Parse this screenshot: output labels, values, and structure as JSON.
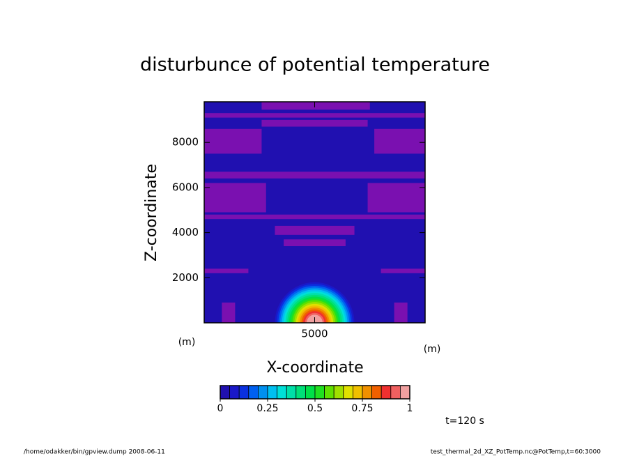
{
  "chart_data": {
    "type": "contour",
    "title": "disturbunce of potential temperature",
    "x_label": "X-coordinate",
    "y_label": "Z-coordinate",
    "x_unit": "(m)",
    "y_unit": "(m)",
    "xlim": [
      0,
      10000
    ],
    "ylim": [
      0,
      9800
    ],
    "xticks": [
      5000
    ],
    "yticks": [
      2000,
      4000,
      6000,
      8000
    ],
    "levels": [
      0,
      0.05,
      0.1,
      0.15,
      0.2,
      0.25,
      0.3,
      0.35,
      0.4,
      0.45,
      0.5,
      0.55,
      0.6,
      0.65,
      0.7,
      0.75,
      0.8,
      0.85,
      0.9,
      0.95,
      1
    ],
    "colors": [
      "#2010b0",
      "#1a18c8",
      "#0a30e0",
      "#0060f0",
      "#0090f0",
      "#00c0f0",
      "#00e0d8",
      "#00e0a8",
      "#00e078",
      "#00e048",
      "#20e020",
      "#60e000",
      "#a0e000",
      "#e0e000",
      "#f0c000",
      "#f09000",
      "#f06000",
      "#f03030",
      "#f06060",
      "#f0a0a0"
    ],
    "colorbar_ticks": [
      0,
      0.25,
      0.5,
      0.75,
      1
    ],
    "negative_color": "#7a10b0",
    "negative_regions": [
      [
        2600,
        7500,
        9450,
        9800
      ],
      [
        0,
        10000,
        9100,
        9300
      ],
      [
        2600,
        7400,
        8700,
        9000
      ],
      [
        0,
        2600,
        7500,
        8600
      ],
      [
        7700,
        10000,
        7500,
        8600
      ],
      [
        0,
        10000,
        6400,
        6700
      ],
      [
        0,
        2800,
        4900,
        6200
      ],
      [
        7400,
        10000,
        4900,
        6200
      ],
      [
        0,
        10000,
        4600,
        4800
      ],
      [
        3200,
        6800,
        3900,
        4300
      ],
      [
        3600,
        6400,
        3400,
        3700
      ],
      [
        0,
        2000,
        2200,
        2400
      ],
      [
        8000,
        10000,
        2200,
        2400
      ],
      [
        800,
        1400,
        0,
        900
      ],
      [
        8600,
        9200,
        0,
        900
      ]
    ],
    "bubble_center": [
      5000,
      0
    ],
    "bubble": [
      {
        "level": 0.05,
        "radius": 1800
      },
      {
        "level": 0.1,
        "radius": 1720
      },
      {
        "level": 0.15,
        "radius": 1640
      },
      {
        "level": 0.2,
        "radius": 1560
      },
      {
        "level": 0.25,
        "radius": 1480
      },
      {
        "level": 0.3,
        "radius": 1400
      },
      {
        "level": 0.35,
        "radius": 1320
      },
      {
        "level": 0.4,
        "radius": 1240
      },
      {
        "level": 0.45,
        "radius": 1160
      },
      {
        "level": 0.5,
        "radius": 1080
      },
      {
        "level": 0.55,
        "radius": 1000
      },
      {
        "level": 0.6,
        "radius": 920
      },
      {
        "level": 0.65,
        "radius": 840
      },
      {
        "level": 0.7,
        "radius": 760
      },
      {
        "level": 0.75,
        "radius": 680
      },
      {
        "level": 0.8,
        "radius": 600
      },
      {
        "level": 0.85,
        "radius": 520
      },
      {
        "level": 0.9,
        "radius": 440
      },
      {
        "level": 0.95,
        "radius": 360
      }
    ],
    "time_label": "t=120 s",
    "footer_left": "/home/odakker/bin/gpview.dump  2008-06-11",
    "footer_right": "test_thermal_2d_XZ_PotTemp.nc@PotTemp,t=60:3000"
  }
}
